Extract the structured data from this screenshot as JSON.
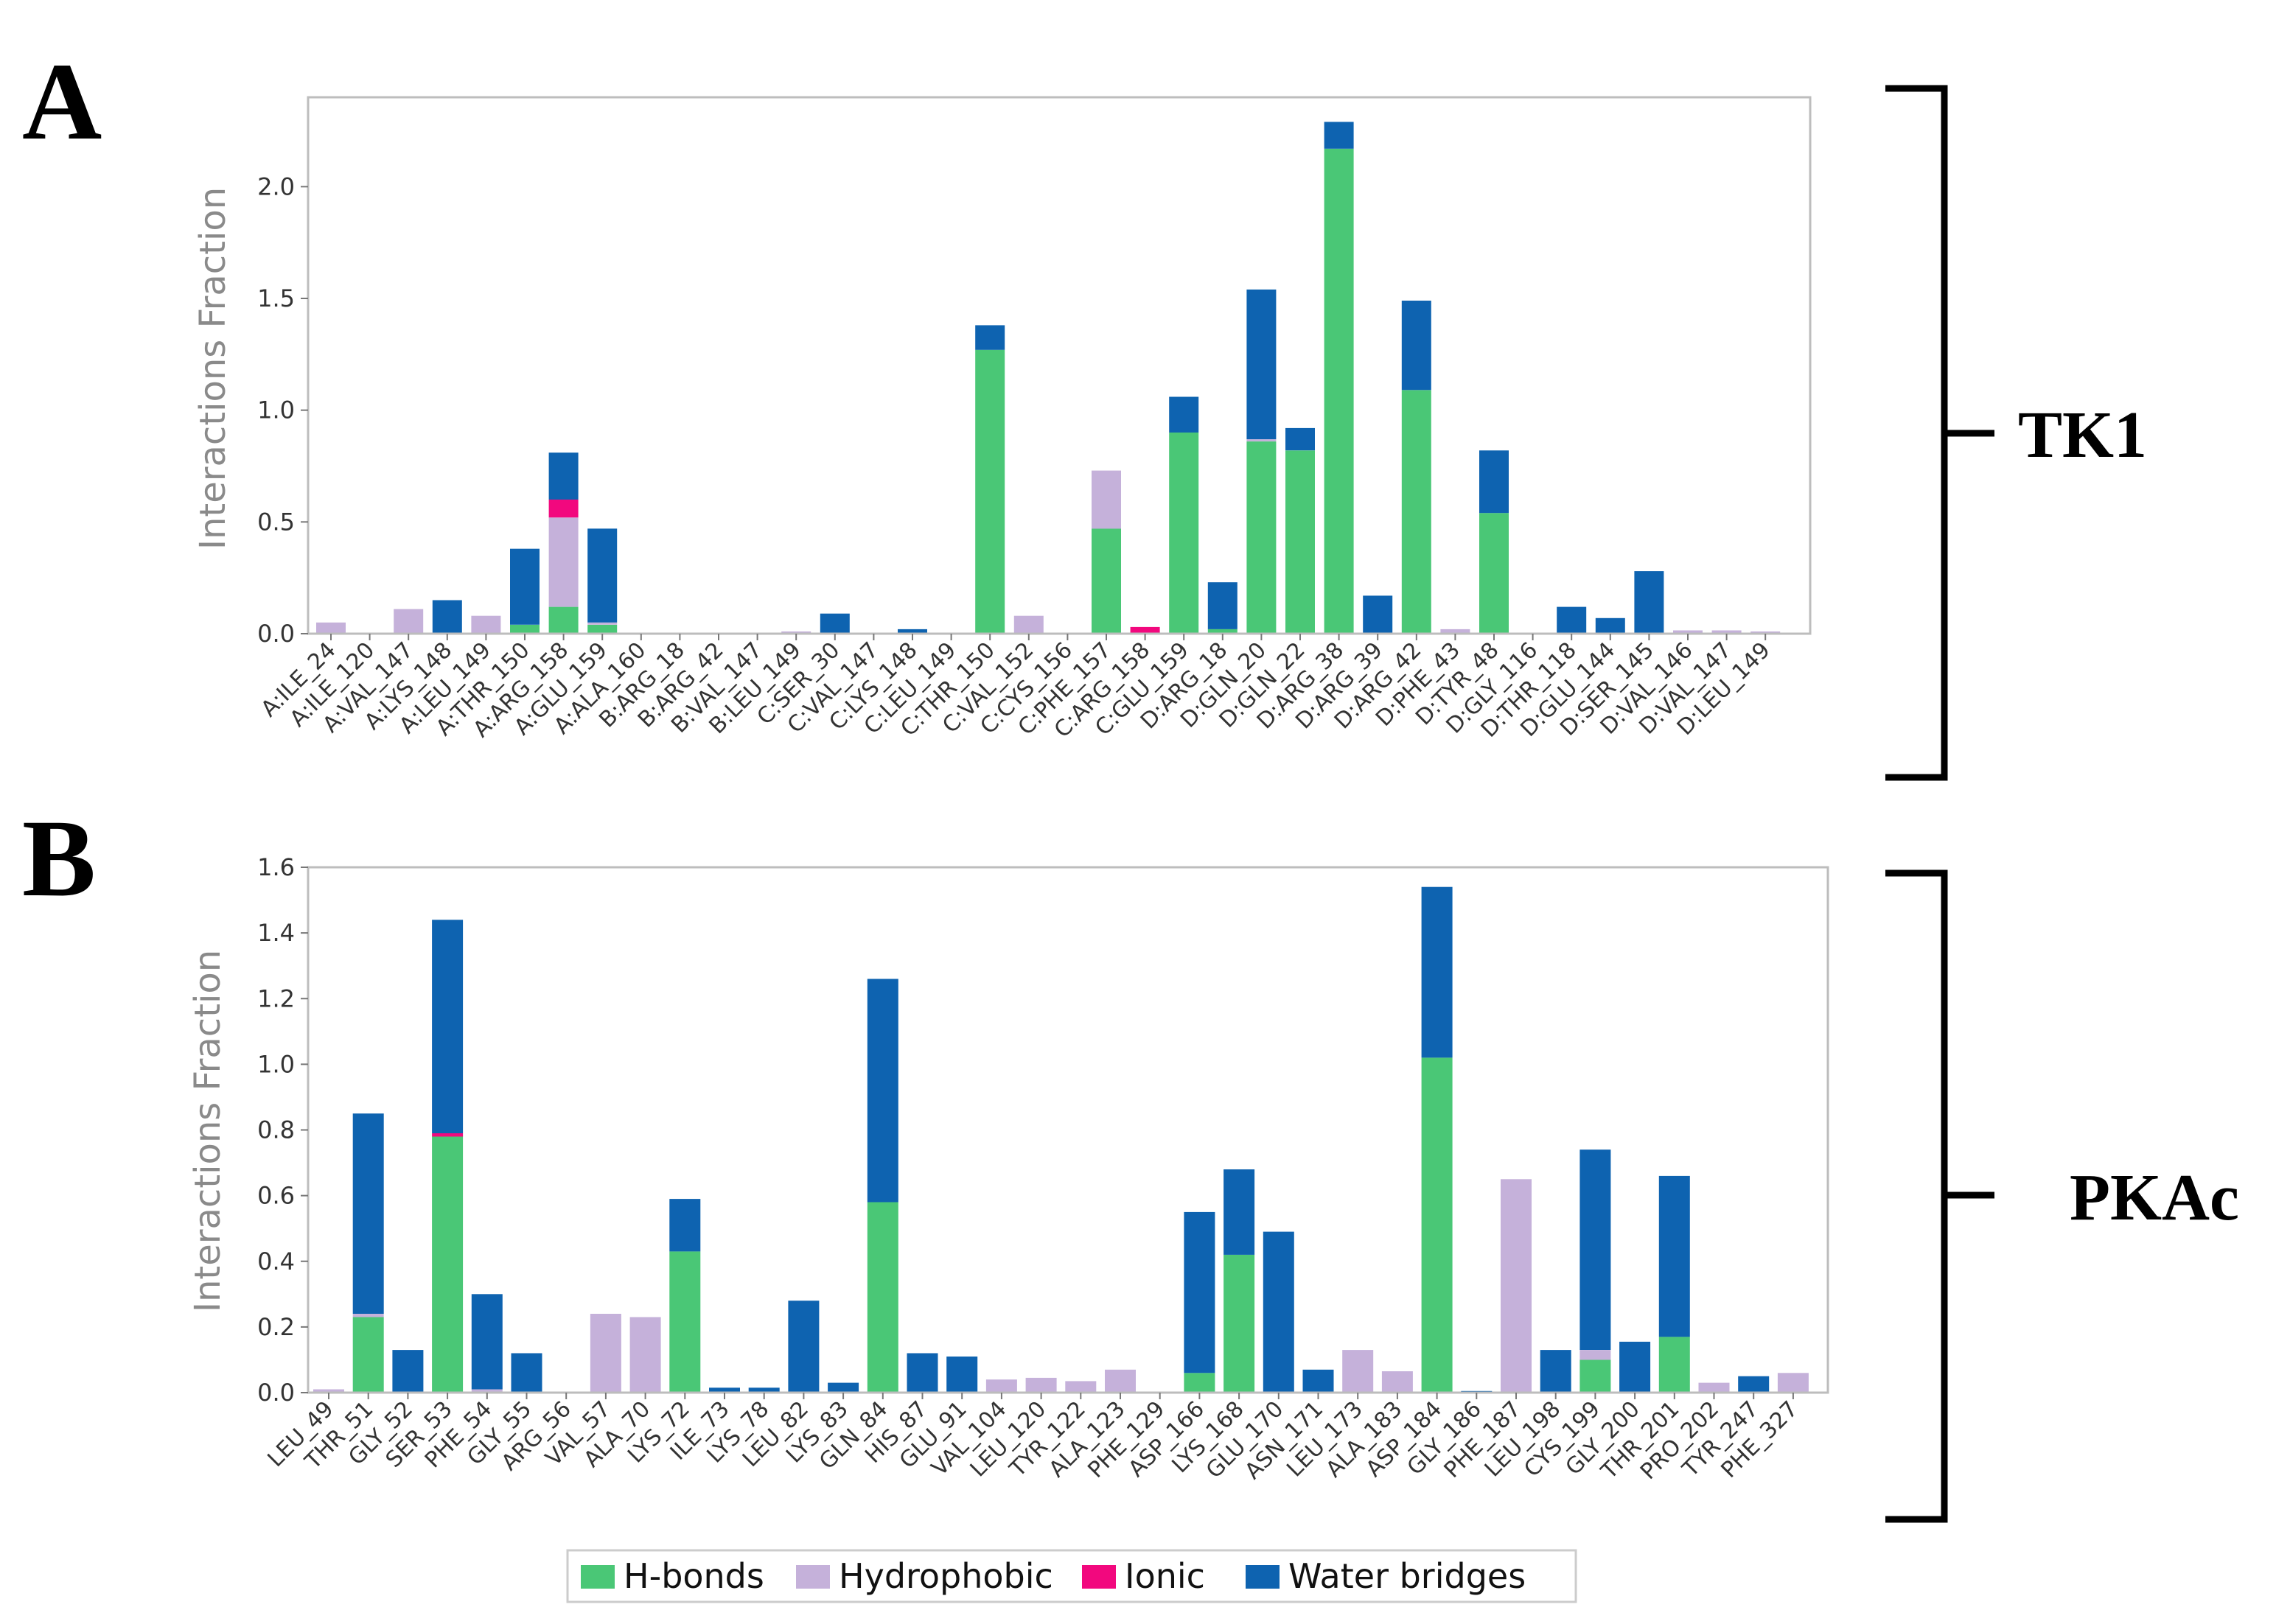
{
  "legend": {
    "items": [
      {
        "key": "hbonds",
        "label": "H-bonds",
        "color": "#4ac776"
      },
      {
        "key": "hydrophobic",
        "label": "Hydrophobic",
        "color": "#c5b1da"
      },
      {
        "key": "ionic",
        "label": "Ionic",
        "color": "#f2087e"
      },
      {
        "key": "water",
        "label": "Water bridges",
        "color": "#0e63b0"
      }
    ]
  },
  "chart_data": [
    {
      "type": "bar",
      "stacked": true,
      "panel_letter": "A",
      "bracket_label": "TK1",
      "ylabel": "Interactions Fraction",
      "xlabel": "",
      "ylim": [
        0,
        2.4
      ],
      "yticks": [
        "0.0",
        "0.5",
        "1.0",
        "1.5",
        "2.0"
      ],
      "ytick_values": [
        0,
        0.5,
        1.0,
        1.5,
        2.0
      ],
      "categories": [
        "A:ILE_24",
        "A:ILE_120",
        "A:VAL_147",
        "A:LYS_148",
        "A:LEU_149",
        "A:THR_150",
        "A:ARG_158",
        "A:GLU_159",
        "A:ALA_160",
        "B:ARG_18",
        "B:ARG_42",
        "B:VAL_147",
        "B:LEU_149",
        "C:SER_30",
        "C:VAL_147",
        "C:LYS_148",
        "C:LEU_149",
        "C:THR_150",
        "C:VAL_152",
        "C:CYS_156",
        "C:PHE_157",
        "C:ARG_158",
        "C:GLU_159",
        "D:ARG_18",
        "D:GLN_20",
        "D:GLN_22",
        "D:ARG_38",
        "D:ARG_39",
        "D:ARG_42",
        "D:PHE_43",
        "D:TYR_48",
        "D:GLY_116",
        "D:THR_118",
        "D:GLU_144",
        "D:SER_145",
        "D:VAL_146",
        "D:VAL_147",
        "D:LEU_149"
      ],
      "series": [
        {
          "name": "H-bonds",
          "key": "hbonds",
          "values": [
            0,
            0,
            0,
            0,
            0,
            0.04,
            0.12,
            0.04,
            0,
            0,
            0,
            0,
            0,
            0,
            0,
            0,
            0,
            1.27,
            0,
            0,
            0.47,
            0,
            0.9,
            0.02,
            0.86,
            0.82,
            2.17,
            0,
            1.09,
            0,
            0.54,
            0,
            0,
            0,
            0,
            0,
            0,
            0
          ]
        },
        {
          "name": "Hydrophobic",
          "key": "hydrophobic",
          "values": [
            0.05,
            0,
            0.11,
            0,
            0.08,
            0,
            0.4,
            0.01,
            0,
            0,
            0,
            0,
            0.01,
            0,
            0,
            0,
            0,
            0,
            0.08,
            0,
            0.26,
            0,
            0,
            0,
            0.01,
            0,
            0,
            0,
            0,
            0.02,
            0,
            0,
            0,
            0,
            0,
            0.015,
            0.015,
            0.01
          ]
        },
        {
          "name": "Ionic",
          "key": "ionic",
          "values": [
            0,
            0,
            0,
            0,
            0,
            0,
            0.08,
            0,
            0,
            0,
            0,
            0,
            0,
            0,
            0,
            0,
            0,
            0,
            0,
            0,
            0,
            0.03,
            0,
            0,
            0,
            0,
            0,
            0,
            0,
            0,
            0,
            0,
            0,
            0,
            0,
            0,
            0,
            0
          ]
        },
        {
          "name": "Water bridges",
          "key": "water",
          "values": [
            0,
            0,
            0,
            0.15,
            0,
            0.34,
            0.21,
            0.42,
            0,
            0,
            0,
            0,
            0,
            0.09,
            0,
            0.02,
            0,
            0.11,
            0,
            0,
            0,
            0,
            0.16,
            0.21,
            0.67,
            0.1,
            0.12,
            0.17,
            0.4,
            0,
            0.28,
            0,
            0.12,
            0.07,
            0.28,
            0,
            0,
            0
          ]
        }
      ]
    },
    {
      "type": "bar",
      "stacked": true,
      "panel_letter": "B",
      "bracket_label": "PKAc",
      "ylabel": "Interactions Fraction",
      "xlabel": "",
      "ylim": [
        0,
        1.6
      ],
      "yticks": [
        "0.0",
        "0.2",
        "0.4",
        "0.6",
        "0.8",
        "1.0",
        "1.2",
        "1.4",
        "1.6"
      ],
      "ytick_values": [
        0,
        0.2,
        0.4,
        0.6,
        0.8,
        1.0,
        1.2,
        1.4,
        1.6
      ],
      "categories": [
        "LEU_49",
        "THR_51",
        "GLY_52",
        "SER_53",
        "PHE_54",
        "GLY_55",
        "ARG_56",
        "VAL_57",
        "ALA_70",
        "LYS_72",
        "ILE_73",
        "LYS_78",
        "LEU_82",
        "LYS_83",
        "GLN_84",
        "HIS_87",
        "GLU_91",
        "VAL_104",
        "LEU_120",
        "TYR_122",
        "ALA_123",
        "PHE_129",
        "ASP_166",
        "LYS_168",
        "GLU_170",
        "ASN_171",
        "LEU_173",
        "ALA_183",
        "ASP_184",
        "GLY_186",
        "PHE_187",
        "LEU_198",
        "CYS_199",
        "GLY_200",
        "THR_201",
        "PRO_202",
        "TYR_247",
        "PHE_327"
      ],
      "series": [
        {
          "name": "H-bonds",
          "key": "hbonds",
          "values": [
            0,
            0.23,
            0,
            0.78,
            0,
            0,
            0,
            0,
            0,
            0.43,
            0,
            0,
            0,
            0,
            0.58,
            0,
            0,
            0,
            0,
            0,
            0,
            0,
            0.06,
            0.42,
            0,
            0,
            0,
            0,
            1.02,
            0,
            0,
            0,
            0.1,
            0,
            0.17,
            0,
            0,
            0
          ]
        },
        {
          "name": "Hydrophobic",
          "key": "hydrophobic",
          "values": [
            0.01,
            0.01,
            0,
            0,
            0.01,
            0,
            0,
            0.24,
            0.23,
            0,
            0,
            0,
            0,
            0,
            0,
            0,
            0,
            0.04,
            0.045,
            0.035,
            0.07,
            0,
            0,
            0,
            0,
            0,
            0.13,
            0.065,
            0,
            0,
            0.65,
            0,
            0.03,
            0,
            0,
            0.03,
            0,
            0.06
          ]
        },
        {
          "name": "Ionic",
          "key": "ionic",
          "values": [
            0,
            0,
            0,
            0.01,
            0,
            0,
            0,
            0,
            0,
            0,
            0,
            0,
            0,
            0,
            0,
            0,
            0,
            0,
            0,
            0,
            0,
            0,
            0,
            0,
            0,
            0,
            0,
            0,
            0,
            0,
            0,
            0,
            0,
            0,
            0,
            0,
            0,
            0
          ]
        },
        {
          "name": "Water bridges",
          "key": "water",
          "values": [
            0,
            0.61,
            0.13,
            0.65,
            0.29,
            0.12,
            0,
            0,
            0,
            0.16,
            0.015,
            0.015,
            0.28,
            0.03,
            0.68,
            0.12,
            0.11,
            0,
            0,
            0,
            0,
            0,
            0.49,
            0.26,
            0.49,
            0.07,
            0,
            0,
            0.52,
            0.005,
            0,
            0.13,
            0.61,
            0.155,
            0.49,
            0,
            0.05,
            0
          ]
        }
      ]
    }
  ]
}
